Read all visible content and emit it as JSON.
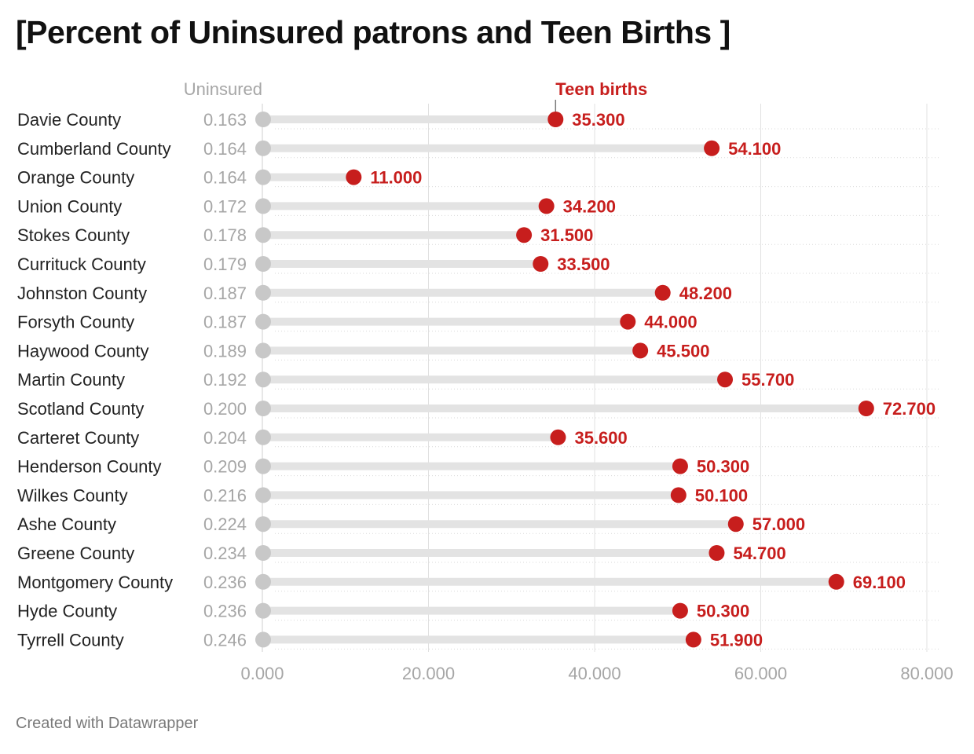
{
  "title": "[Percent of Uninsured patrons and Teen Births ]",
  "footer": "Created with Datawrapper",
  "colors": {
    "teen_births": "#c71e1d",
    "uninsured_dot": "#c8c8c8",
    "bar": "#e3e3e3",
    "grid": "#e0e0e0"
  },
  "chart_data": {
    "type": "scatter",
    "subtype": "range-dot",
    "columns": {
      "uninsured": "Uninsured",
      "teen_births": "Teen births"
    },
    "xlim": [
      0,
      80
    ],
    "xticks": [
      0,
      20,
      40,
      60,
      80
    ],
    "xtick_labels": [
      "0.000",
      "20.000",
      "40.000",
      "60.000",
      "80.000"
    ],
    "grid": true,
    "categories": [
      "Davie County",
      "Cumberland County",
      "Orange County",
      "Union County",
      "Stokes County",
      "Currituck County",
      "Johnston County",
      "Forsyth County",
      "Haywood County",
      "Martin County",
      "Scotland County",
      "Carteret County",
      "Henderson County",
      "Wilkes County",
      "Ashe County",
      "Greene County",
      "Montgomery County",
      "Hyde County",
      "Tyrrell County"
    ],
    "uninsured": [
      0.163,
      0.164,
      0.164,
      0.172,
      0.178,
      0.179,
      0.187,
      0.187,
      0.189,
      0.192,
      0.2,
      0.204,
      0.209,
      0.216,
      0.224,
      0.234,
      0.236,
      0.236,
      0.246
    ],
    "uninsured_labels": [
      "0.163",
      "0.164",
      "0.164",
      "0.172",
      "0.178",
      "0.179",
      "0.187",
      "0.187",
      "0.189",
      "0.192",
      "0.200",
      "0.204",
      "0.209",
      "0.216",
      "0.224",
      "0.234",
      "0.236",
      "0.236",
      "0.246"
    ],
    "teen_births": [
      35.3,
      54.1,
      11.0,
      34.2,
      31.5,
      33.5,
      48.2,
      44.0,
      45.5,
      55.7,
      72.7,
      35.6,
      50.3,
      50.1,
      57.0,
      54.7,
      69.1,
      50.3,
      51.9
    ],
    "teen_births_labels": [
      "35.300",
      "54.100",
      "11.000",
      "34.200",
      "31.500",
      "33.500",
      "48.200",
      "44.000",
      "45.500",
      "55.700",
      "72.700",
      "35.600",
      "50.300",
      "50.100",
      "57.000",
      "54.700",
      "69.100",
      "50.300",
      "51.900"
    ]
  }
}
